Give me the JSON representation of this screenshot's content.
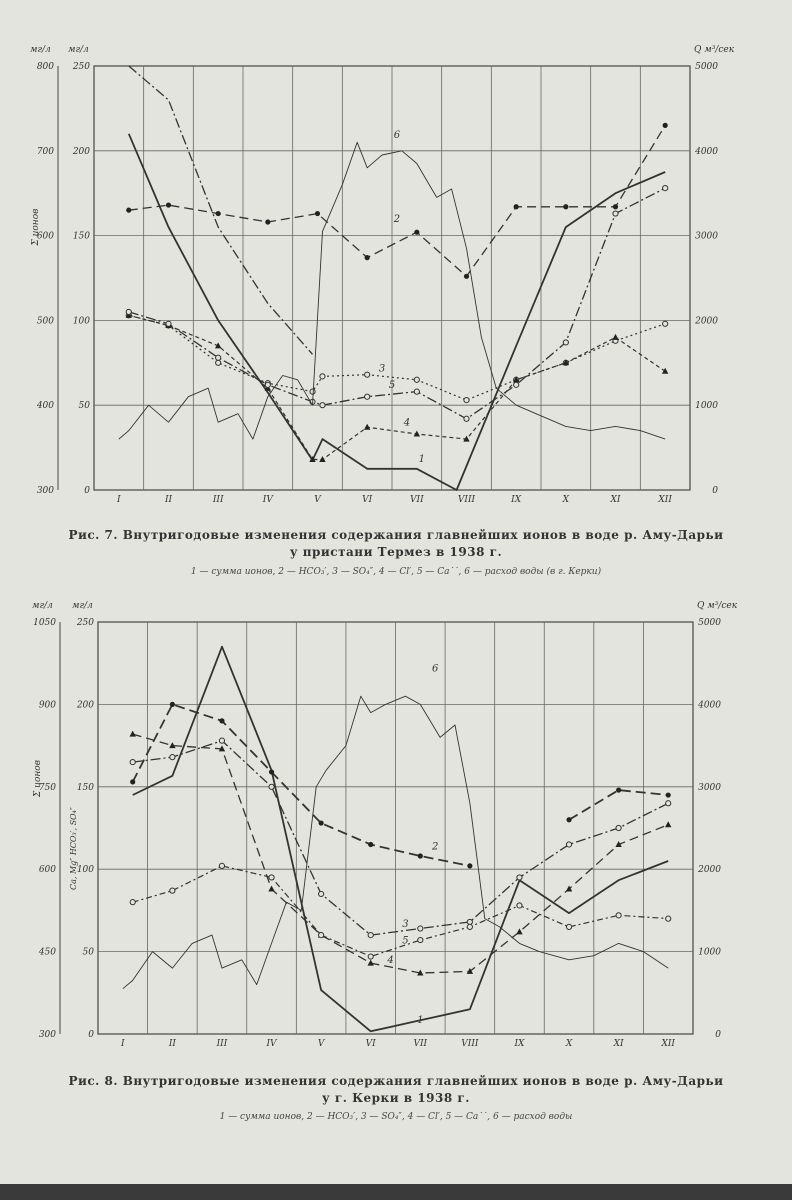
{
  "figure7": {
    "caption_line1": "Рис. 7. Внутригодовые изменения содержания главнейших ионов в воде р. Аму-Дарьи",
    "caption_line2": "у пристани Термез в 1938 г.",
    "legend_text": "1 — сумма ионов, 2 — HCO₃′, 3 — SO₄″, 4 — Cl′, 5 — Ca˙˙, 6 — расход воды (в г. Керки)"
  },
  "figure8": {
    "caption_line1": "Рис. 8. Внутригодовые изменения содержания главнейших ионов в воде р. Аму-Дарьи",
    "caption_line2": "у г. Керки в 1938 г.",
    "legend_text": "1 — сумма ионов, 2 — HCO₃′, 3 — SO₄″, 4 — Cl′, 5 — Ca˙˙, 6 — расход воды"
  },
  "chart_data": [
    {
      "type": "line",
      "x": [
        "I",
        "II",
        "III",
        "IV",
        "V",
        "VI",
        "VII",
        "VIII",
        "IX",
        "X",
        "XI",
        "XII"
      ],
      "axes": {
        "left_outer": {
          "label": "мг/л",
          "side_label": "Σ ионов",
          "ticks": [
            "800",
            "700",
            "600",
            "500",
            "400",
            "300"
          ],
          "range": [
            300,
            800
          ]
        },
        "left_inner": {
          "label": "мг/л",
          "ticks": [
            "250",
            "200",
            "150",
            "100",
            "50",
            "0"
          ],
          "range": [
            0,
            250
          ]
        },
        "right": {
          "label": "Q м³/сек",
          "ticks": [
            "5000",
            "4000",
            "3000",
            "2000",
            "1000",
            "0"
          ],
          "range": [
            0,
            5000
          ]
        }
      },
      "series": [
        {
          "name": "1",
          "axis": "left_outer",
          "style": "solid-thick",
          "x": [
            1.2,
            2,
            3,
            4,
            4.9,
            5.1,
            6,
            7,
            7.8,
            9,
            10,
            11,
            12
          ],
          "values": [
            720,
            610,
            500,
            415,
            335,
            360,
            325,
            325,
            300,
            470,
            610,
            650,
            675
          ]
        },
        {
          "name": "2",
          "axis": "left_inner",
          "style": "dash",
          "marker": "dot",
          "x": [
            1.2,
            2,
            3,
            4,
            5,
            6,
            7,
            8,
            9,
            10,
            11,
            12
          ],
          "values": [
            165,
            168,
            163,
            158,
            163,
            137,
            152,
            126,
            167,
            167,
            167,
            215
          ]
        },
        {
          "name": "3",
          "axis": "left_inner",
          "style": "dot",
          "marker": "circle",
          "x": [
            1.2,
            2,
            3,
            4,
            4.9,
            5.1,
            6,
            7,
            8,
            9,
            10,
            11,
            12
          ],
          "values": [
            103,
            97,
            75,
            63,
            58,
            67,
            68,
            65,
            53,
            65,
            75,
            88,
            98
          ]
        },
        {
          "name": "4",
          "axis": "left_inner",
          "style": "dash-short",
          "marker": "triangle",
          "x": [
            1.2,
            2,
            3,
            4,
            4.9,
            5.1,
            6,
            7,
            8,
            9,
            10,
            11,
            12
          ],
          "values": [
            103,
            97,
            85,
            60,
            18,
            18,
            37,
            33,
            30,
            65,
            75,
            90,
            70
          ]
        },
        {
          "name": "5",
          "axis": "left_inner",
          "style": "dash-dot",
          "marker": "circle",
          "x": [
            1.2,
            2,
            3,
            4,
            4.9,
            5.1,
            6,
            7,
            8,
            9,
            10,
            11,
            12
          ],
          "values": [
            105,
            98,
            78,
            62,
            52,
            50,
            55,
            58,
            42,
            62,
            87,
            163,
            178
          ]
        },
        {
          "name": "5 (upper)",
          "axis": "left_inner",
          "style": "dash-dot",
          "x": [
            1.2,
            2,
            3,
            4,
            4.9
          ],
          "values": [
            250,
            230,
            155,
            110,
            80
          ]
        },
        {
          "name": "6",
          "axis": "right",
          "style": "thin",
          "x": [
            1,
            1.2,
            1.6,
            2,
            2.4,
            2.8,
            3,
            3.4,
            3.7,
            4,
            4.3,
            4.6,
            4.9,
            5.1,
            5.5,
            5.8,
            6,
            6.3,
            6.7,
            7,
            7.4,
            7.7,
            8,
            8.3,
            8.6,
            9,
            9.4,
            10,
            10.5,
            11,
            11.5,
            12
          ],
          "values": [
            600,
            700,
            1000,
            800,
            1100,
            1200,
            800,
            900,
            600,
            1100,
            1350,
            1300,
            1000,
            3050,
            3600,
            4100,
            3800,
            3950,
            4000,
            3850,
            3450,
            3550,
            2850,
            1800,
            1200,
            1000,
            900,
            750,
            700,
            750,
            700,
            600
          ]
        }
      ]
    },
    {
      "type": "line",
      "x": [
        "I",
        "II",
        "III",
        "IV",
        "V",
        "VI",
        "VII",
        "VIII",
        "IX",
        "X",
        "XI",
        "XII"
      ],
      "axes": {
        "left_outer": {
          "label": "мг/л",
          "side_label": "Σ ионов",
          "ticks": [
            "1050",
            "900",
            "750",
            "600",
            "450",
            "300"
          ],
          "range": [
            300,
            1050
          ]
        },
        "left_inner": {
          "label": "мг/л",
          "side_label": "Ca, Mg″  HCO₃′, SO₄″",
          "ticks": [
            "250",
            "200",
            "150",
            "100",
            "50",
            "0"
          ],
          "range": [
            0,
            250
          ]
        },
        "right": {
          "label": "Q м³/сек",
          "ticks": [
            "5000",
            "4000",
            "3000",
            "2000",
            "1000",
            "0"
          ],
          "range": [
            0,
            5000
          ]
        }
      },
      "series": [
        {
          "name": "1",
          "axis": "left_outer",
          "style": "solid-thick",
          "x": [
            1.2,
            2,
            3,
            4,
            5,
            6,
            7,
            8,
            9,
            10,
            11,
            12
          ],
          "values": [
            735,
            770,
            1005,
            780,
            380,
            305,
            325,
            345,
            580,
            520,
            580,
            615
          ]
        },
        {
          "name": "2",
          "axis": "left_inner",
          "style": "dash-thick",
          "marker": "dot",
          "x": [
            1.2,
            2,
            3,
            4,
            5,
            6,
            7,
            8,
            9,
            10,
            11,
            12
          ],
          "values": [
            153,
            200,
            190,
            159,
            128,
            115,
            108,
            102,
            null,
            130,
            148,
            145
          ]
        },
        {
          "name": "3",
          "axis": "left_inner",
          "style": "dash-dot",
          "marker": "circle",
          "x": [
            1.2,
            2,
            3,
            4,
            5,
            6,
            7,
            8,
            9,
            10,
            11,
            12
          ],
          "values": [
            165,
            168,
            178,
            150,
            85,
            60,
            64,
            68,
            95,
            115,
            125,
            140
          ]
        },
        {
          "name": "4",
          "axis": "left_inner",
          "style": "dash",
          "marker": "triangle",
          "x": [
            1.2,
            2,
            3,
            4,
            5,
            6,
            7,
            8,
            9,
            10,
            11,
            12
          ],
          "values": [
            182,
            175,
            173,
            88,
            60,
            43,
            37,
            38,
            62,
            88,
            115,
            127
          ]
        },
        {
          "name": "5",
          "axis": "left_inner",
          "style": "dot-dash",
          "marker": "circle",
          "x": [
            1.2,
            2,
            3,
            4,
            5,
            6,
            7,
            8,
            9,
            10,
            11,
            12
          ],
          "values": [
            80,
            87,
            102,
            95,
            60,
            47,
            57,
            65,
            78,
            65,
            72,
            70
          ]
        },
        {
          "name": "6",
          "axis": "right",
          "style": "thin",
          "x": [
            1,
            1.2,
            1.6,
            2,
            2.4,
            2.8,
            3,
            3.4,
            3.7,
            4,
            4.3,
            4.6,
            4.9,
            5.1,
            5.5,
            5.8,
            6,
            6.3,
            6.7,
            7,
            7.4,
            7.7,
            8,
            8.3,
            8.6,
            9,
            9.4,
            10,
            10.5,
            11,
            11.5,
            12
          ],
          "values": [
            550,
            650,
            1000,
            800,
            1100,
            1200,
            800,
            900,
            600,
            1100,
            1600,
            1500,
            3000,
            3200,
            3500,
            4100,
            3900,
            4000,
            4100,
            4000,
            3600,
            3750,
            2800,
            1400,
            1300,
            1100,
            1000,
            900,
            950,
            1100,
            1000,
            800
          ]
        }
      ]
    }
  ]
}
